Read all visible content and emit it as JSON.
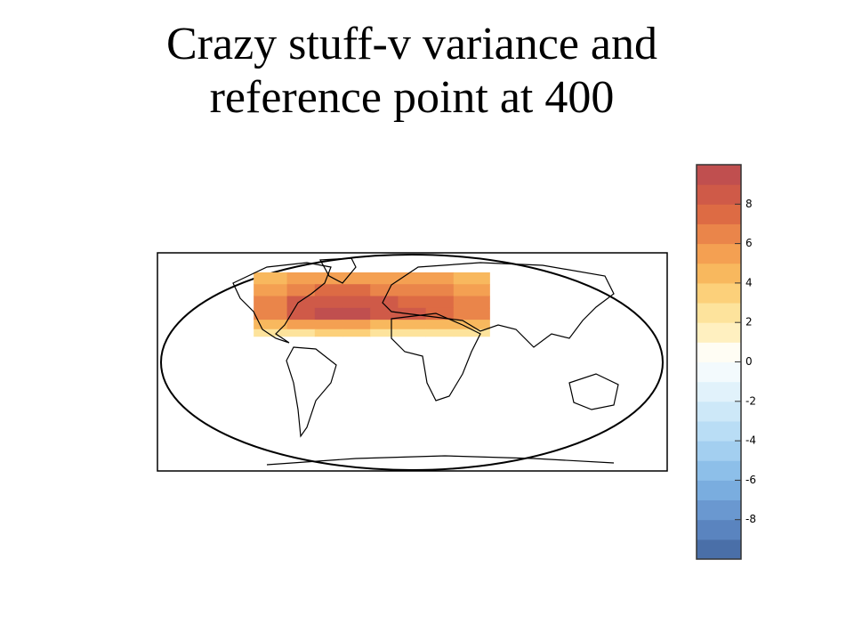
{
  "chart_data": {
    "type": "heatmap",
    "title": "Crazy stuff-v variance and reference point at 400",
    "grid": {
      "lon": [
        -114,
        -90,
        -70,
        -50,
        -30,
        -10,
        10,
        30,
        56
      ],
      "lat": [
        76,
        66,
        56,
        46,
        36,
        28,
        22
      ],
      "values": [
        [
          4,
          5,
          5,
          5,
          5,
          5,
          5,
          4
        ],
        [
          5,
          6,
          7,
          7,
          6,
          6,
          6,
          5
        ],
        [
          6,
          8,
          8,
          8,
          8,
          7,
          7,
          6
        ],
        [
          6,
          8,
          9,
          9,
          8,
          8,
          7,
          6
        ],
        [
          4,
          5,
          5,
          5,
          4,
          4,
          4,
          4
        ],
        [
          2,
          2,
          3,
          3,
          2,
          2,
          2,
          2
        ]
      ]
    },
    "colorbar": {
      "clim": [
        -10,
        10
      ],
      "ticks": [
        8,
        6,
        4,
        2,
        0,
        -2,
        -4,
        -6,
        -8
      ],
      "colors": [
        "#4a6fa8",
        "#5a84bf",
        "#6a98d0",
        "#7aaddf",
        "#8dbfe9",
        "#a3cff0",
        "#b9ddf5",
        "#cde8f8",
        "#e1f2fb",
        "#f3fafd",
        "#fffdf4",
        "#fff0c0",
        "#fde39c",
        "#fcd07a",
        "#f8b85e",
        "#f4a052",
        "#ea854a",
        "#dd6b44",
        "#cf5a48",
        "#c04f4f"
      ]
    }
  }
}
